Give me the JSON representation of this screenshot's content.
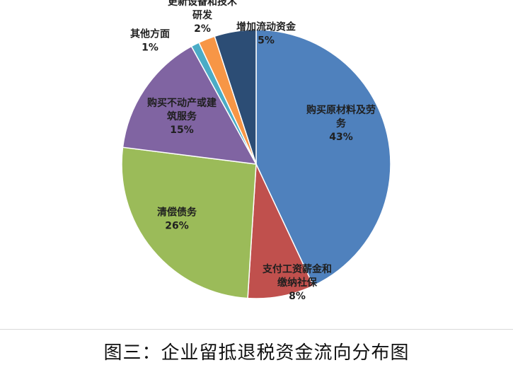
{
  "caption": "图三：企业留抵退税资金流向分布图",
  "chart_data": {
    "type": "pie",
    "title": "",
    "start": "12 o'clock",
    "direction": "clockwise",
    "slices": [
      {
        "label_lines": [
          "购买原材料及劳",
          "务"
        ],
        "percent_text": "43%",
        "value": 43,
        "color": "#4f81bd"
      },
      {
        "label_lines": [
          "支付工资薪金和",
          "缴纳社保"
        ],
        "percent_text": "8%",
        "value": 8,
        "color": "#c0504d"
      },
      {
        "label_lines": [
          "清偿债务"
        ],
        "percent_text": "26%",
        "value": 26,
        "color": "#9bbb59"
      },
      {
        "label_lines": [
          "购买不动产或建",
          "筑服务"
        ],
        "percent_text": "15%",
        "value": 15,
        "color": "#8064a2"
      },
      {
        "label_lines": [
          "其他方面"
        ],
        "percent_text": "1%",
        "value": 1,
        "color": "#4bacc6"
      },
      {
        "label_lines": [
          "更新设备和技术",
          "研发"
        ],
        "percent_text": "2%",
        "value": 2,
        "color": "#f79646"
      },
      {
        "label_lines": [
          "增加流动资金"
        ],
        "percent_text": "5%",
        "value": 5,
        "color": "#2c4d75"
      }
    ]
  }
}
